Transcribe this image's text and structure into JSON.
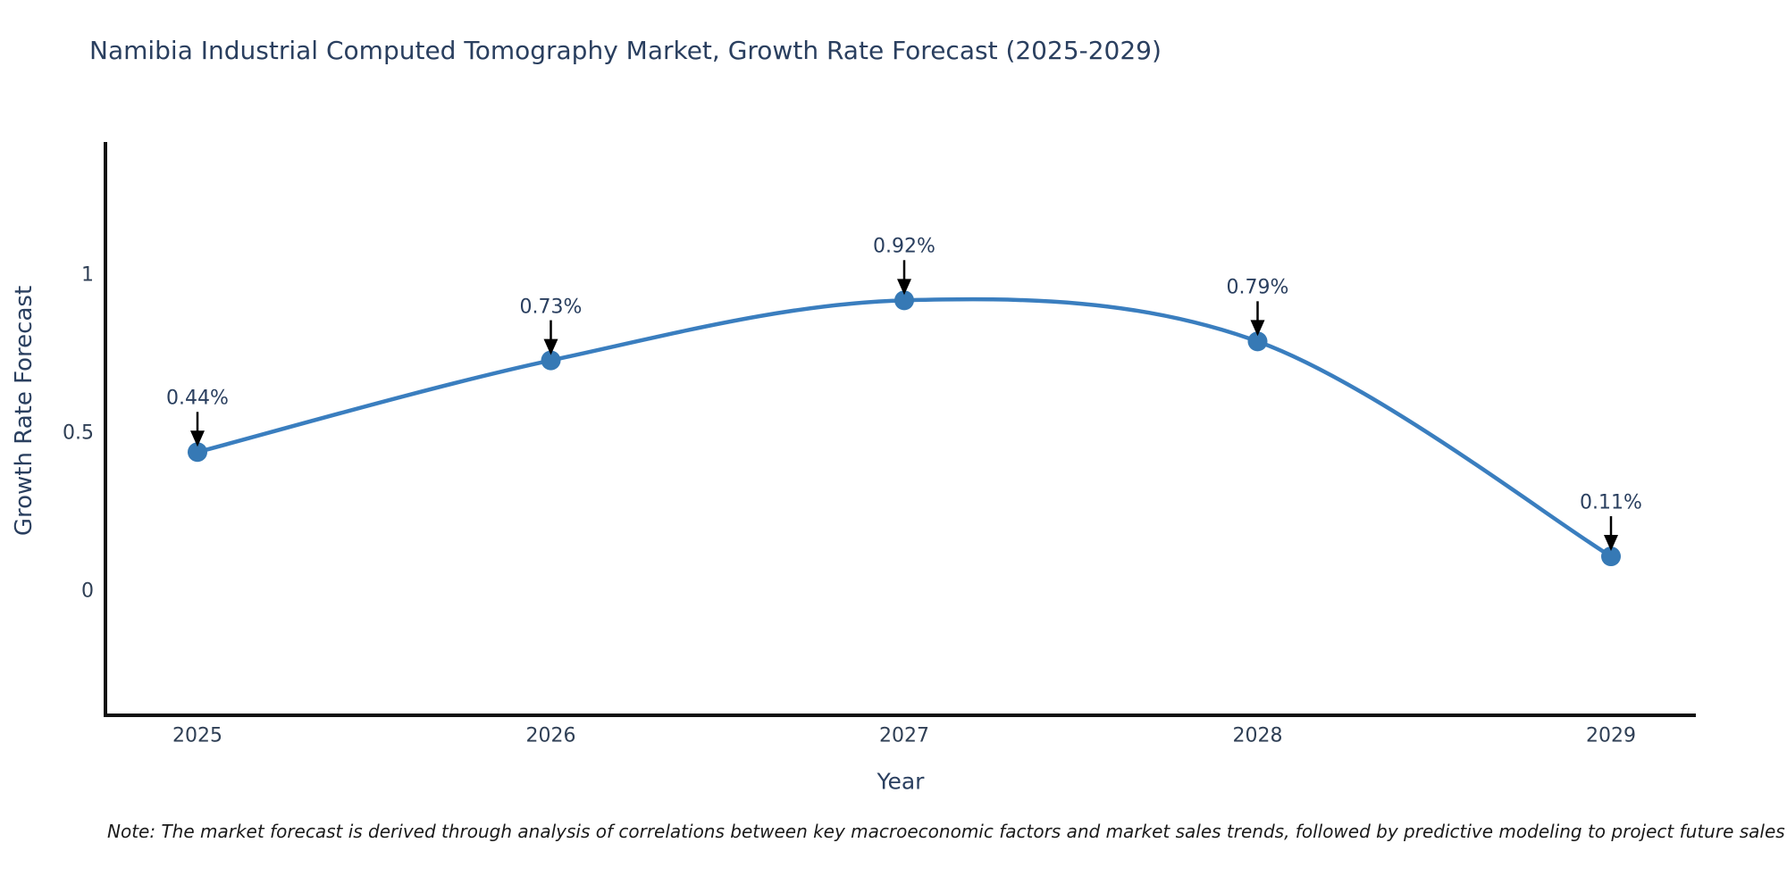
{
  "page": {
    "background_color": "#ffffff"
  },
  "chart": {
    "title": "Namibia Industrial Computed Tomography Market, Growth Rate Forecast (2025-2029)",
    "x_axis": {
      "title": "Year"
    },
    "y_axis": {
      "title": "Growth Rate Forecast"
    },
    "note": "Note: The market forecast is derived through analysis of correlations between key macroeconomic factors and market sales trends, followed by predictive modeling to project future sales",
    "colors": {
      "title_text": "#2a3f5f",
      "tick_text": "#2f3f55",
      "line": "#3a7ebf",
      "marker": "#3679b5",
      "axis_line": "#111111",
      "annotation_arrow": "#000000",
      "note_text": "#1a1a1a"
    }
  },
  "chart_data": {
    "type": "line",
    "title": "Namibia Industrial Computed Tomography Market, Growth Rate Forecast (2025-2029)",
    "xlabel": "Year",
    "ylabel": "Growth Rate Forecast",
    "x": [
      2025,
      2026,
      2027,
      2028,
      2029
    ],
    "x_tick_labels": [
      "2025",
      "2026",
      "2027",
      "2028",
      "2029"
    ],
    "series": [
      {
        "name": "Growth Rate Forecast",
        "values": [
          0.44,
          0.73,
          0.92,
          0.79,
          0.11
        ]
      }
    ],
    "point_labels": [
      "0.44%",
      "0.73%",
      "0.92%",
      "0.79%",
      "0.11%"
    ],
    "yticks": [
      0,
      0.5,
      1
    ],
    "ytick_labels": [
      "0",
      "0.5",
      "1"
    ],
    "ylim": [
      -0.4,
      1.42
    ],
    "grid": false,
    "legend": false,
    "line_shape": "spline",
    "annotations_have_arrows": true
  }
}
